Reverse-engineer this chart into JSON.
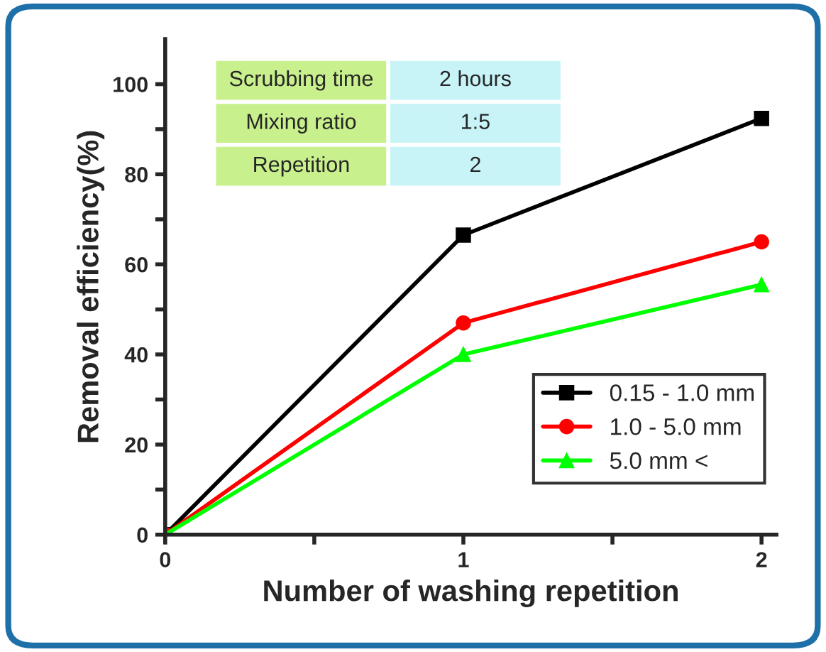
{
  "chart_data": {
    "type": "line",
    "xlabel": "Number of washing repetition",
    "ylabel": "Removal efficiency(%)",
    "x": [
      0,
      1,
      2
    ],
    "series": [
      {
        "name": "0.15 - 1.0 mm",
        "color": "#000000",
        "marker": "square",
        "values": [
          0,
          66.5,
          92.4
        ]
      },
      {
        "name": "1.0 - 5.0 mm",
        "color": "#ff0000",
        "marker": "circle",
        "values": [
          0,
          47,
          65
        ]
      },
      {
        "name": "5.0 mm <",
        "color": "#00ff00",
        "marker": "triangle",
        "values": [
          0,
          40,
          55.5
        ]
      }
    ],
    "xlim": [
      0,
      2.05
    ],
    "ylim": [
      0,
      110
    ],
    "xticks": [
      0,
      {
        "value": 0.5,
        "label": null
      },
      1,
      {
        "value": 1.5,
        "label": null
      },
      2
    ],
    "yticks": [
      0,
      {
        "value": 10,
        "label": null
      },
      20,
      {
        "value": 30,
        "label": null
      },
      40,
      {
        "value": 50,
        "label": null
      },
      60,
      {
        "value": 70,
        "label": null
      },
      80,
      {
        "value": 90,
        "label": null
      },
      100
    ],
    "annotations": [
      "Scrubbing time",
      "2 hours",
      "Mixing ratio",
      "1:5",
      "Repetition",
      "2"
    ],
    "legend": "bottom right",
    "grid": false,
    "line_style": "solid"
  }
}
